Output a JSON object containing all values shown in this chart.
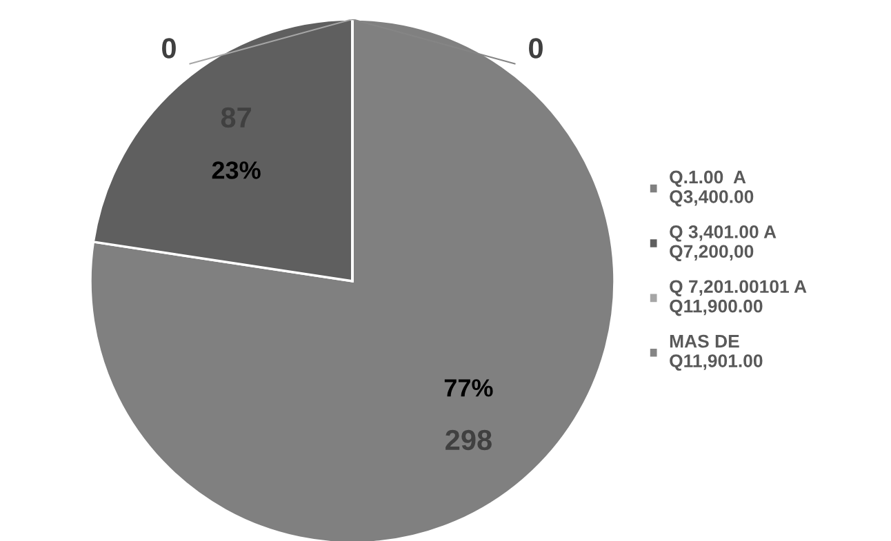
{
  "chart_data": {
    "type": "pie",
    "categories": [
      "Q.1.00  A\nQ3,400.00",
      "Q 3,401.00 A\nQ7,200,00",
      "Q 7,201.00101 A\nQ11,900.00",
      "MAS DE\nQ11,901.00"
    ],
    "values": [
      298,
      87,
      0,
      0
    ],
    "colors": [
      "#808080",
      "#5f5f5f",
      "#a6a6a6",
      "#858585"
    ],
    "value_labels": [
      "77%\n298",
      "87\n23%",
      "0",
      "0"
    ],
    "legend": "right"
  }
}
